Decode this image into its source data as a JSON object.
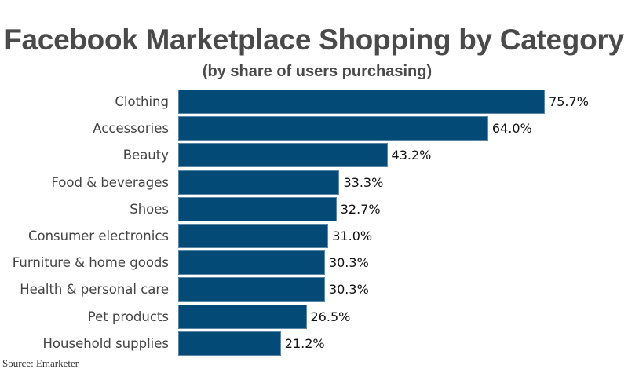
{
  "header": {
    "title": "Facebook Marketplace Shopping by Category",
    "subtitle": "(by share of users purchasing)"
  },
  "footer": {
    "source": "Source: Emarketer"
  },
  "colors": {
    "bar": "#034a77",
    "title": "#4a4a4a",
    "label": "#444444"
  },
  "chart_data": {
    "type": "bar",
    "orientation": "horizontal",
    "title": "Facebook Marketplace Shopping by Category",
    "subtitle": "(by share of users purchasing)",
    "xlabel": "",
    "ylabel": "",
    "categories": [
      "Clothing",
      "Accessories",
      "Beauty",
      "Food & beverages",
      "Shoes",
      "Consumer electronics",
      "Furniture & home goods",
      "Health & personal care",
      "Pet products",
      "Household supplies"
    ],
    "values": [
      75.7,
      64.0,
      43.2,
      33.3,
      32.7,
      31.0,
      30.3,
      30.3,
      26.5,
      21.2
    ],
    "value_labels": [
      "75.7%",
      "64.0%",
      "43.2%",
      "33.3%",
      "32.7%",
      "31.0%",
      "30.3%",
      "30.3%",
      "26.5%",
      "21.2%"
    ],
    "unit": "%",
    "grid": false,
    "legend": null,
    "source": "Source: Emarketer"
  }
}
